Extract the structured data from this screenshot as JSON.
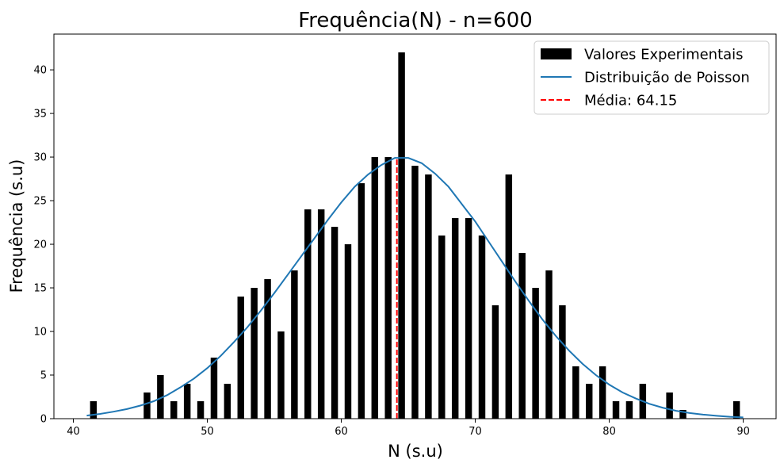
{
  "chart_data": {
    "type": "bar",
    "title": "Frequência(N) - n=600",
    "xlabel": "N (s.u)",
    "ylabel": "Frequência (s.u)",
    "xlim": [
      38.55,
      92.45
    ],
    "ylim": [
      0,
      44.1
    ],
    "xticks": [
      40,
      50,
      60,
      70,
      80,
      90
    ],
    "yticks": [
      0,
      5,
      10,
      15,
      20,
      25,
      30,
      35,
      40
    ],
    "grid": false,
    "legend_position": "top-right",
    "colors": {
      "bars": "#000000",
      "poisson": "#1f77b4",
      "mean": "#ff0000"
    },
    "series": [
      {
        "name": "Valores Experimentais",
        "kind": "bar",
        "points": [
          [
            41.5,
            2
          ],
          [
            45.5,
            3
          ],
          [
            46.5,
            5
          ],
          [
            47.5,
            2
          ],
          [
            48.5,
            4
          ],
          [
            49.5,
            2
          ],
          [
            50.5,
            7
          ],
          [
            51.5,
            4
          ],
          [
            52.5,
            14
          ],
          [
            53.5,
            15
          ],
          [
            54.5,
            16
          ],
          [
            55.5,
            10
          ],
          [
            56.5,
            17
          ],
          [
            57.5,
            24
          ],
          [
            58.5,
            24
          ],
          [
            59.5,
            22
          ],
          [
            60.5,
            20
          ],
          [
            61.5,
            27
          ],
          [
            62.5,
            30
          ],
          [
            63.5,
            30
          ],
          [
            64.5,
            42
          ],
          [
            65.5,
            29
          ],
          [
            66.5,
            28
          ],
          [
            67.5,
            21
          ],
          [
            68.5,
            23
          ],
          [
            69.5,
            23
          ],
          [
            70.5,
            21
          ],
          [
            71.5,
            13
          ],
          [
            72.5,
            28
          ],
          [
            73.5,
            19
          ],
          [
            74.5,
            15
          ],
          [
            75.5,
            17
          ],
          [
            76.5,
            13
          ],
          [
            77.5,
            6
          ],
          [
            78.5,
            4
          ],
          [
            79.5,
            6
          ],
          [
            80.5,
            2
          ],
          [
            81.5,
            2
          ],
          [
            82.5,
            4
          ],
          [
            84.5,
            3
          ],
          [
            85.5,
            1
          ],
          [
            89.5,
            2
          ]
        ]
      },
      {
        "name": "Distribuição de Poisson",
        "kind": "line",
        "points": [
          [
            41,
            0.35
          ],
          [
            42,
            0.55
          ],
          [
            43,
            0.8
          ],
          [
            44,
            1.1
          ],
          [
            45,
            1.5
          ],
          [
            46,
            2.0
          ],
          [
            47,
            2.7
          ],
          [
            48,
            3.6
          ],
          [
            49,
            4.6
          ],
          [
            50,
            5.8
          ],
          [
            51,
            7.2
          ],
          [
            52,
            8.8
          ],
          [
            53,
            10.5
          ],
          [
            54,
            12.4
          ],
          [
            55,
            14.4
          ],
          [
            56,
            16.5
          ],
          [
            57,
            18.6
          ],
          [
            58,
            20.7
          ],
          [
            59,
            22.8
          ],
          [
            60,
            24.8
          ],
          [
            61,
            26.6
          ],
          [
            62,
            28.0
          ],
          [
            63,
            29.1
          ],
          [
            64,
            29.9
          ],
          [
            65,
            29.9
          ],
          [
            66,
            29.3
          ],
          [
            67,
            28.1
          ],
          [
            68,
            26.6
          ],
          [
            69,
            24.6
          ],
          [
            70,
            22.6
          ],
          [
            71,
            20.3
          ],
          [
            72,
            18.0
          ],
          [
            73,
            15.7
          ],
          [
            74,
            13.5
          ],
          [
            75,
            11.4
          ],
          [
            76,
            9.5
          ],
          [
            77,
            7.8
          ],
          [
            78,
            6.3
          ],
          [
            79,
            5.0
          ],
          [
            80,
            3.9
          ],
          [
            81,
            3.0
          ],
          [
            82,
            2.3
          ],
          [
            83,
            1.7
          ],
          [
            84,
            1.25
          ],
          [
            85,
            0.9
          ],
          [
            86,
            0.65
          ],
          [
            87,
            0.47
          ],
          [
            88,
            0.33
          ],
          [
            89,
            0.22
          ],
          [
            90,
            0.15
          ]
        ]
      },
      {
        "name": "Média: 64.15",
        "kind": "vline",
        "x": 64.15,
        "y_range": [
          0,
          30
        ]
      }
    ]
  }
}
